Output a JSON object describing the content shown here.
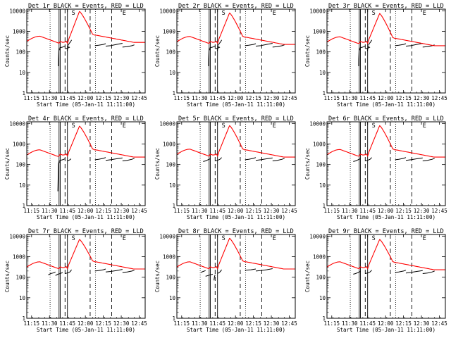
{
  "common": {
    "xlabel": "Start Time (05-Jan-11 11:11:00)",
    "ylabel": "Counts/sec",
    "x_ticks": [
      "11:15",
      "11:30",
      "11:45",
      "12:00",
      "12:15",
      "12:30",
      "12:45"
    ],
    "x_tick_minutes": [
      4,
      19,
      34,
      49,
      64,
      79,
      94
    ],
    "x_range_minutes": [
      0,
      99
    ],
    "y_ticks": [
      "1",
      "10",
      "100",
      "1000",
      "10000"
    ],
    "y_tick_values": [
      1,
      10,
      100,
      1000,
      10000
    ],
    "yscale": "log",
    "ylim": [
      1,
      12000
    ],
    "series_colors": {
      "events": "#000000",
      "lld": "#ff0000"
    },
    "annotation_marker_labels": [
      "S",
      "E"
    ],
    "dashed_markers_minutes": [
      32,
      53,
      71
    ],
    "dotted_markers_minutes": [
      19.5,
      57.5
    ],
    "solid_double_markers_minutes": [
      27,
      28,
      34
    ]
  },
  "chart_data": [
    {
      "type": "line",
      "title": "Det 1r BLACK = Events, RED = LLD",
      "event_curve": "A",
      "lld_peak": 9500,
      "lld_pre": 580,
      "lld_post": 290
    },
    {
      "type": "line",
      "title": "Det 2r BLACK = Events, RED = LLD",
      "event_curve": "A",
      "lld_peak": 8000,
      "lld_pre": 560,
      "lld_post": 230
    },
    {
      "type": "line",
      "title": "Det 3r BLACK = Events, RED = LLD",
      "event_curve": "A",
      "lld_peak": 7500,
      "lld_pre": 540,
      "lld_post": 200
    },
    {
      "type": "line",
      "title": "Det 4r BLACK = Events, RED = LLD",
      "event_curve": "B",
      "lld_peak": 7500,
      "lld_pre": 520,
      "lld_post": 230
    },
    {
      "type": "line",
      "title": "Det 5r BLACK = Events, RED = LLD",
      "event_curve": "C",
      "lld_peak": 8000,
      "lld_pre": 560,
      "lld_post": 230
    },
    {
      "type": "line",
      "title": "Det 6r BLACK = Events, RED = LLD",
      "event_curve": "C",
      "lld_peak": 8000,
      "lld_pre": 540,
      "lld_post": 230
    },
    {
      "type": "line",
      "title": "Det 7r BLACK = Events, RED = LLD",
      "event_curve": "D",
      "lld_peak": 7000,
      "lld_pre": 560,
      "lld_post": 250
    },
    {
      "type": "line",
      "title": "Det 8r BLACK = Events, RED = LLD",
      "event_curve": "E",
      "lld_peak": 8000,
      "lld_pre": 560,
      "lld_post": 250
    },
    {
      "type": "line",
      "title": "Det 9r BLACK = Events, RED = LLD",
      "event_curve": "C",
      "lld_peak": 7000,
      "lld_pre": 560,
      "lld_post": 230
    }
  ]
}
